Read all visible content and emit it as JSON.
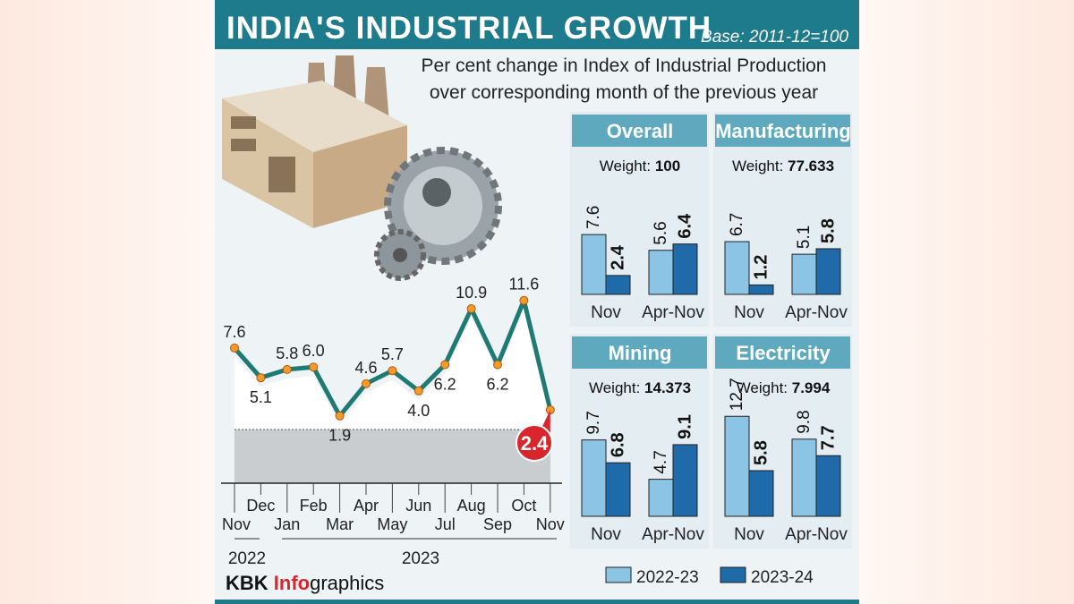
{
  "header": {
    "title": "INDIA'S INDUSTRIAL GROWTH",
    "base": "Base: 2011-12=100"
  },
  "subtitle": [
    "Per cent change in Index of Industrial Production",
    "over corresponding month of the previous year"
  ],
  "footer": {
    "brand_bold": "KBK ",
    "brand_red": "Info",
    "brand_rest": "graphics"
  },
  "colors": {
    "header": "#1e7b8c",
    "panel_header": "#5ea9be",
    "panel_bg": "#e3edf2",
    "line": "#1e7a72",
    "light_bar": "#8cc4e6",
    "dark_bar": "#1f6aa8",
    "highlight": "#d8262c"
  },
  "chart_data": [
    {
      "type": "line",
      "categories": [
        "Nov",
        "Dec",
        "Jan",
        "Feb",
        "Mar",
        "Apr",
        "May",
        "Jun",
        "Jul",
        "Aug",
        "Sep",
        "Oct",
        "Nov"
      ],
      "year_labels": [
        {
          "label": "2022",
          "span": [
            "Nov",
            "Dec"
          ]
        },
        {
          "label": "2023",
          "span": [
            "Jan",
            "Nov"
          ]
        }
      ],
      "values": [
        7.6,
        5.1,
        5.8,
        6.0,
        1.9,
        4.6,
        5.7,
        4.0,
        6.2,
        10.9,
        6.2,
        11.6,
        2.4
      ],
      "data_labels": [
        "7.6",
        "5.1",
        "5.8",
        "6.0",
        "1.9",
        "4.6",
        "5.7",
        "4.0",
        "6.2",
        "10.9",
        "6.2",
        "11.6",
        "2.4"
      ],
      "highlight_last": true
    },
    {
      "type": "bar",
      "legend": [
        "2022-23",
        "2023-24"
      ],
      "panels": [
        {
          "title": "Overall",
          "weight_label": "Weight: ",
          "weight": "100",
          "categories": [
            "Nov",
            "Apr-Nov"
          ],
          "series": [
            {
              "name": "2022-23",
              "values": [
                7.6,
                5.6
              ]
            },
            {
              "name": "2023-24",
              "values": [
                2.4,
                6.4
              ]
            }
          ]
        },
        {
          "title": "Manufacturing",
          "weight_label": "Weight: ",
          "weight": "77.633",
          "categories": [
            "Nov",
            "Apr-Nov"
          ],
          "series": [
            {
              "name": "2022-23",
              "values": [
                6.7,
                5.1
              ]
            },
            {
              "name": "2023-24",
              "values": [
                1.2,
                5.8
              ]
            }
          ]
        },
        {
          "title": "Mining",
          "weight_label": "Weight: ",
          "weight": "14.373",
          "categories": [
            "Nov",
            "Apr-Nov"
          ],
          "series": [
            {
              "name": "2022-23",
              "values": [
                9.7,
                4.7
              ]
            },
            {
              "name": "2023-24",
              "values": [
                6.8,
                9.1
              ]
            }
          ]
        },
        {
          "title": "Electricity",
          "weight_label": "Weight: ",
          "weight": "7.994",
          "categories": [
            "Nov",
            "Apr-Nov"
          ],
          "series": [
            {
              "name": "2022-23",
              "values": [
                12.7,
                9.8
              ]
            },
            {
              "name": "2023-24",
              "values": [
                5.8,
                7.7
              ]
            }
          ]
        }
      ]
    }
  ]
}
